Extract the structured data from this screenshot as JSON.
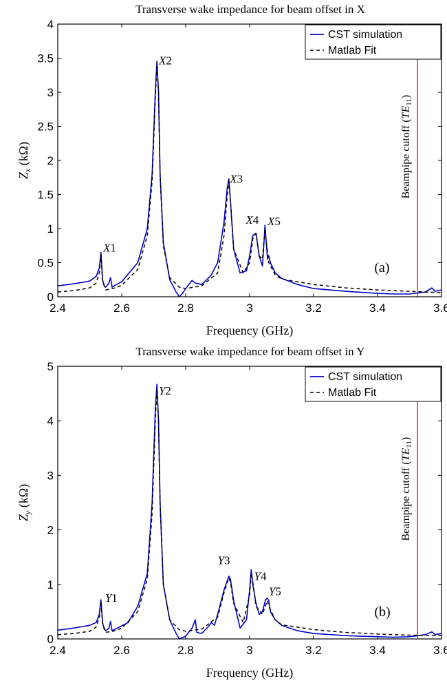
{
  "chart_data": [
    {
      "type": "line",
      "title": "Transverse wake impedance for beam offset in X",
      "xlabel": "Frequency (GHz)",
      "ylabel_main": "Z",
      "ylabel_sub": "x",
      "ylabel_unit": " (kΩ)",
      "xlim": [
        2.4,
        3.6
      ],
      "ylim": [
        0,
        4
      ],
      "xticks": [
        "2.4",
        "2.6",
        "2.8",
        "3",
        "3.2",
        "3.4",
        "3.6"
      ],
      "yticks": [
        "0",
        "0.5",
        "1",
        "1.5",
        "2",
        "2.5",
        "3",
        "3.5",
        "4"
      ],
      "grid": false,
      "legend": "top-right",
      "panel_label": "(a)",
      "cutoff": {
        "x": 3.525,
        "label_main": "Beampipe cutoff (",
        "label_sym": "TE",
        "label_sub": "11",
        "label_end": ")",
        "color": "#e0302a"
      },
      "series": [
        {
          "name": "CST simulation",
          "style": "solid",
          "color": "#0000cc",
          "x": [
            2.4,
            2.45,
            2.5,
            2.52,
            2.53,
            2.535,
            2.54,
            2.545,
            2.55,
            2.56,
            2.565,
            2.57,
            2.58,
            2.6,
            2.65,
            2.68,
            2.695,
            2.705,
            2.71,
            2.715,
            2.72,
            2.73,
            2.75,
            2.77,
            2.78,
            2.79,
            2.8,
            2.82,
            2.83,
            2.85,
            2.87,
            2.88,
            2.9,
            2.92,
            2.93,
            2.935,
            2.94,
            2.95,
            2.97,
            2.99,
            3.0,
            3.01,
            3.02,
            3.03,
            3.04,
            3.045,
            3.048,
            3.052,
            3.056,
            3.06,
            3.065,
            3.08,
            3.1,
            3.15,
            3.2,
            3.3,
            3.4,
            3.45,
            3.5,
            3.55,
            3.57,
            3.58,
            3.6
          ],
          "y": [
            0.16,
            0.19,
            0.23,
            0.3,
            0.42,
            0.65,
            0.25,
            0.16,
            0.14,
            0.2,
            0.28,
            0.14,
            0.17,
            0.22,
            0.5,
            1.0,
            1.8,
            3.0,
            3.45,
            3.0,
            1.8,
            0.8,
            0.25,
            0.07,
            0.0,
            0.05,
            0.12,
            0.24,
            0.2,
            0.18,
            0.27,
            0.32,
            0.5,
            1.1,
            1.6,
            1.73,
            1.4,
            0.7,
            0.35,
            0.38,
            0.6,
            0.9,
            0.93,
            0.6,
            0.45,
            0.8,
            1.05,
            0.8,
            0.55,
            0.6,
            0.5,
            0.35,
            0.27,
            0.18,
            0.12,
            0.08,
            0.05,
            0.04,
            0.04,
            0.07,
            0.13,
            0.08,
            0.1
          ]
        },
        {
          "name": "Matlab Fit",
          "style": "dashed",
          "color": "#000000",
          "x": [
            2.4,
            2.45,
            2.5,
            2.52,
            2.53,
            2.535,
            2.54,
            2.55,
            2.58,
            2.6,
            2.65,
            2.68,
            2.695,
            2.705,
            2.71,
            2.715,
            2.72,
            2.73,
            2.75,
            2.78,
            2.8,
            2.85,
            2.9,
            2.92,
            2.93,
            2.935,
            2.94,
            2.95,
            2.98,
            3.0,
            3.01,
            3.02,
            3.03,
            3.04,
            3.048,
            3.052,
            3.06,
            3.08,
            3.1,
            3.2,
            3.3,
            3.4,
            3.5,
            3.6
          ],
          "y": [
            0.07,
            0.09,
            0.13,
            0.2,
            0.35,
            0.62,
            0.25,
            0.1,
            0.13,
            0.17,
            0.4,
            0.9,
            1.7,
            2.9,
            3.45,
            3.0,
            1.8,
            0.75,
            0.28,
            0.14,
            0.12,
            0.16,
            0.35,
            0.9,
            1.5,
            1.7,
            1.4,
            0.7,
            0.35,
            0.5,
            0.85,
            0.93,
            0.6,
            0.55,
            1.0,
            0.8,
            0.5,
            0.32,
            0.26,
            0.18,
            0.13,
            0.1,
            0.08,
            0.06
          ]
        }
      ],
      "annotations": [
        {
          "label": "X",
          "num": "1",
          "x": 2.542,
          "y": 0.66
        },
        {
          "label": "X",
          "num": "2",
          "x": 2.716,
          "y": 3.41
        },
        {
          "label": "X",
          "num": "3",
          "x": 2.938,
          "y": 1.67
        },
        {
          "label": "X",
          "num": "4",
          "x": 2.988,
          "y": 1.07
        },
        {
          "label": "X",
          "num": "5",
          "x": 3.056,
          "y": 1.05
        }
      ]
    },
    {
      "type": "line",
      "title": "Transverse wake impedance for beam offset in Y",
      "xlabel": "Frequency (GHz)",
      "ylabel_main": "Z",
      "ylabel_sub": "y",
      "ylabel_unit": " (kΩ)",
      "xlim": [
        2.4,
        3.6
      ],
      "ylim": [
        0,
        5
      ],
      "xticks": [
        "2.4",
        "2.6",
        "2.8",
        "3",
        "3.2",
        "3.4",
        "3.6"
      ],
      "yticks": [
        "0",
        "1",
        "2",
        "3",
        "4",
        "5"
      ],
      "grid": false,
      "legend": "top-right",
      "panel_label": "(b)",
      "cutoff": {
        "x": 3.525,
        "label_main": "Beampipe cutoff (",
        "label_sym": "TE",
        "label_sub": "11",
        "label_end": ")",
        "color": "#e0302a"
      },
      "series": [
        {
          "name": "CST simulation",
          "style": "solid",
          "color": "#0000cc",
          "x": [
            2.4,
            2.45,
            2.5,
            2.52,
            2.53,
            2.535,
            2.54,
            2.545,
            2.55,
            2.56,
            2.565,
            2.57,
            2.58,
            2.6,
            2.62,
            2.65,
            2.68,
            2.695,
            2.705,
            2.71,
            2.715,
            2.72,
            2.73,
            2.75,
            2.77,
            2.78,
            2.8,
            2.82,
            2.83,
            2.835,
            2.85,
            2.87,
            2.88,
            2.89,
            2.9,
            2.92,
            2.935,
            2.94,
            2.95,
            2.97,
            2.99,
            3.0,
            3.005,
            3.01,
            3.02,
            3.03,
            3.04,
            3.05,
            3.055,
            3.06,
            3.065,
            3.08,
            3.1,
            3.15,
            3.2,
            3.3,
            3.4,
            3.45,
            3.5,
            3.55,
            3.57,
            3.58,
            3.6
          ],
          "y": [
            0.16,
            0.2,
            0.25,
            0.3,
            0.45,
            0.72,
            0.3,
            0.18,
            0.15,
            0.2,
            0.32,
            0.15,
            0.18,
            0.24,
            0.3,
            0.6,
            1.2,
            2.5,
            4.2,
            4.67,
            4.0,
            2.5,
            1.0,
            0.35,
            0.1,
            0.0,
            0.05,
            0.2,
            0.35,
            0.12,
            0.1,
            0.22,
            0.3,
            0.25,
            0.45,
            0.9,
            1.15,
            1.1,
            0.7,
            0.2,
            0.35,
            0.9,
            1.27,
            1.0,
            0.65,
            0.45,
            0.5,
            0.72,
            0.75,
            0.7,
            0.5,
            0.35,
            0.25,
            0.15,
            0.1,
            0.06,
            0.04,
            0.03,
            0.04,
            0.08,
            0.13,
            0.08,
            0.1
          ]
        },
        {
          "name": "Matlab Fit",
          "style": "dashed",
          "color": "#000000",
          "x": [
            2.4,
            2.45,
            2.5,
            2.52,
            2.53,
            2.535,
            2.54,
            2.55,
            2.58,
            2.6,
            2.65,
            2.68,
            2.695,
            2.705,
            2.71,
            2.715,
            2.72,
            2.73,
            2.75,
            2.78,
            2.8,
            2.85,
            2.9,
            2.92,
            2.935,
            2.94,
            2.95,
            2.98,
            3.0,
            3.005,
            3.01,
            3.02,
            3.04,
            3.055,
            3.06,
            3.08,
            3.1,
            3.2,
            3.3,
            3.4,
            3.5,
            3.6
          ],
          "y": [
            0.08,
            0.1,
            0.14,
            0.22,
            0.4,
            0.7,
            0.3,
            0.12,
            0.15,
            0.2,
            0.5,
            1.1,
            2.3,
            4.0,
            4.6,
            4.0,
            2.5,
            1.0,
            0.35,
            0.17,
            0.14,
            0.18,
            0.4,
            0.85,
            1.12,
            1.05,
            0.65,
            0.3,
            0.8,
            1.2,
            1.05,
            0.6,
            0.45,
            0.7,
            0.6,
            0.35,
            0.26,
            0.17,
            0.12,
            0.09,
            0.07,
            0.06
          ]
        }
      ],
      "annotations": [
        {
          "label": "Y",
          "num": "1",
          "x": 2.548,
          "y": 0.68
        },
        {
          "label": "Y",
          "num": "2",
          "x": 2.716,
          "y": 4.48
        },
        {
          "label": "Y",
          "num": "3",
          "x": 2.9,
          "y": 1.37
        },
        {
          "label": "Y",
          "num": "4",
          "x": 3.014,
          "y": 1.08
        },
        {
          "label": "Y",
          "num": "5",
          "x": 3.06,
          "y": 0.8
        }
      ]
    }
  ]
}
